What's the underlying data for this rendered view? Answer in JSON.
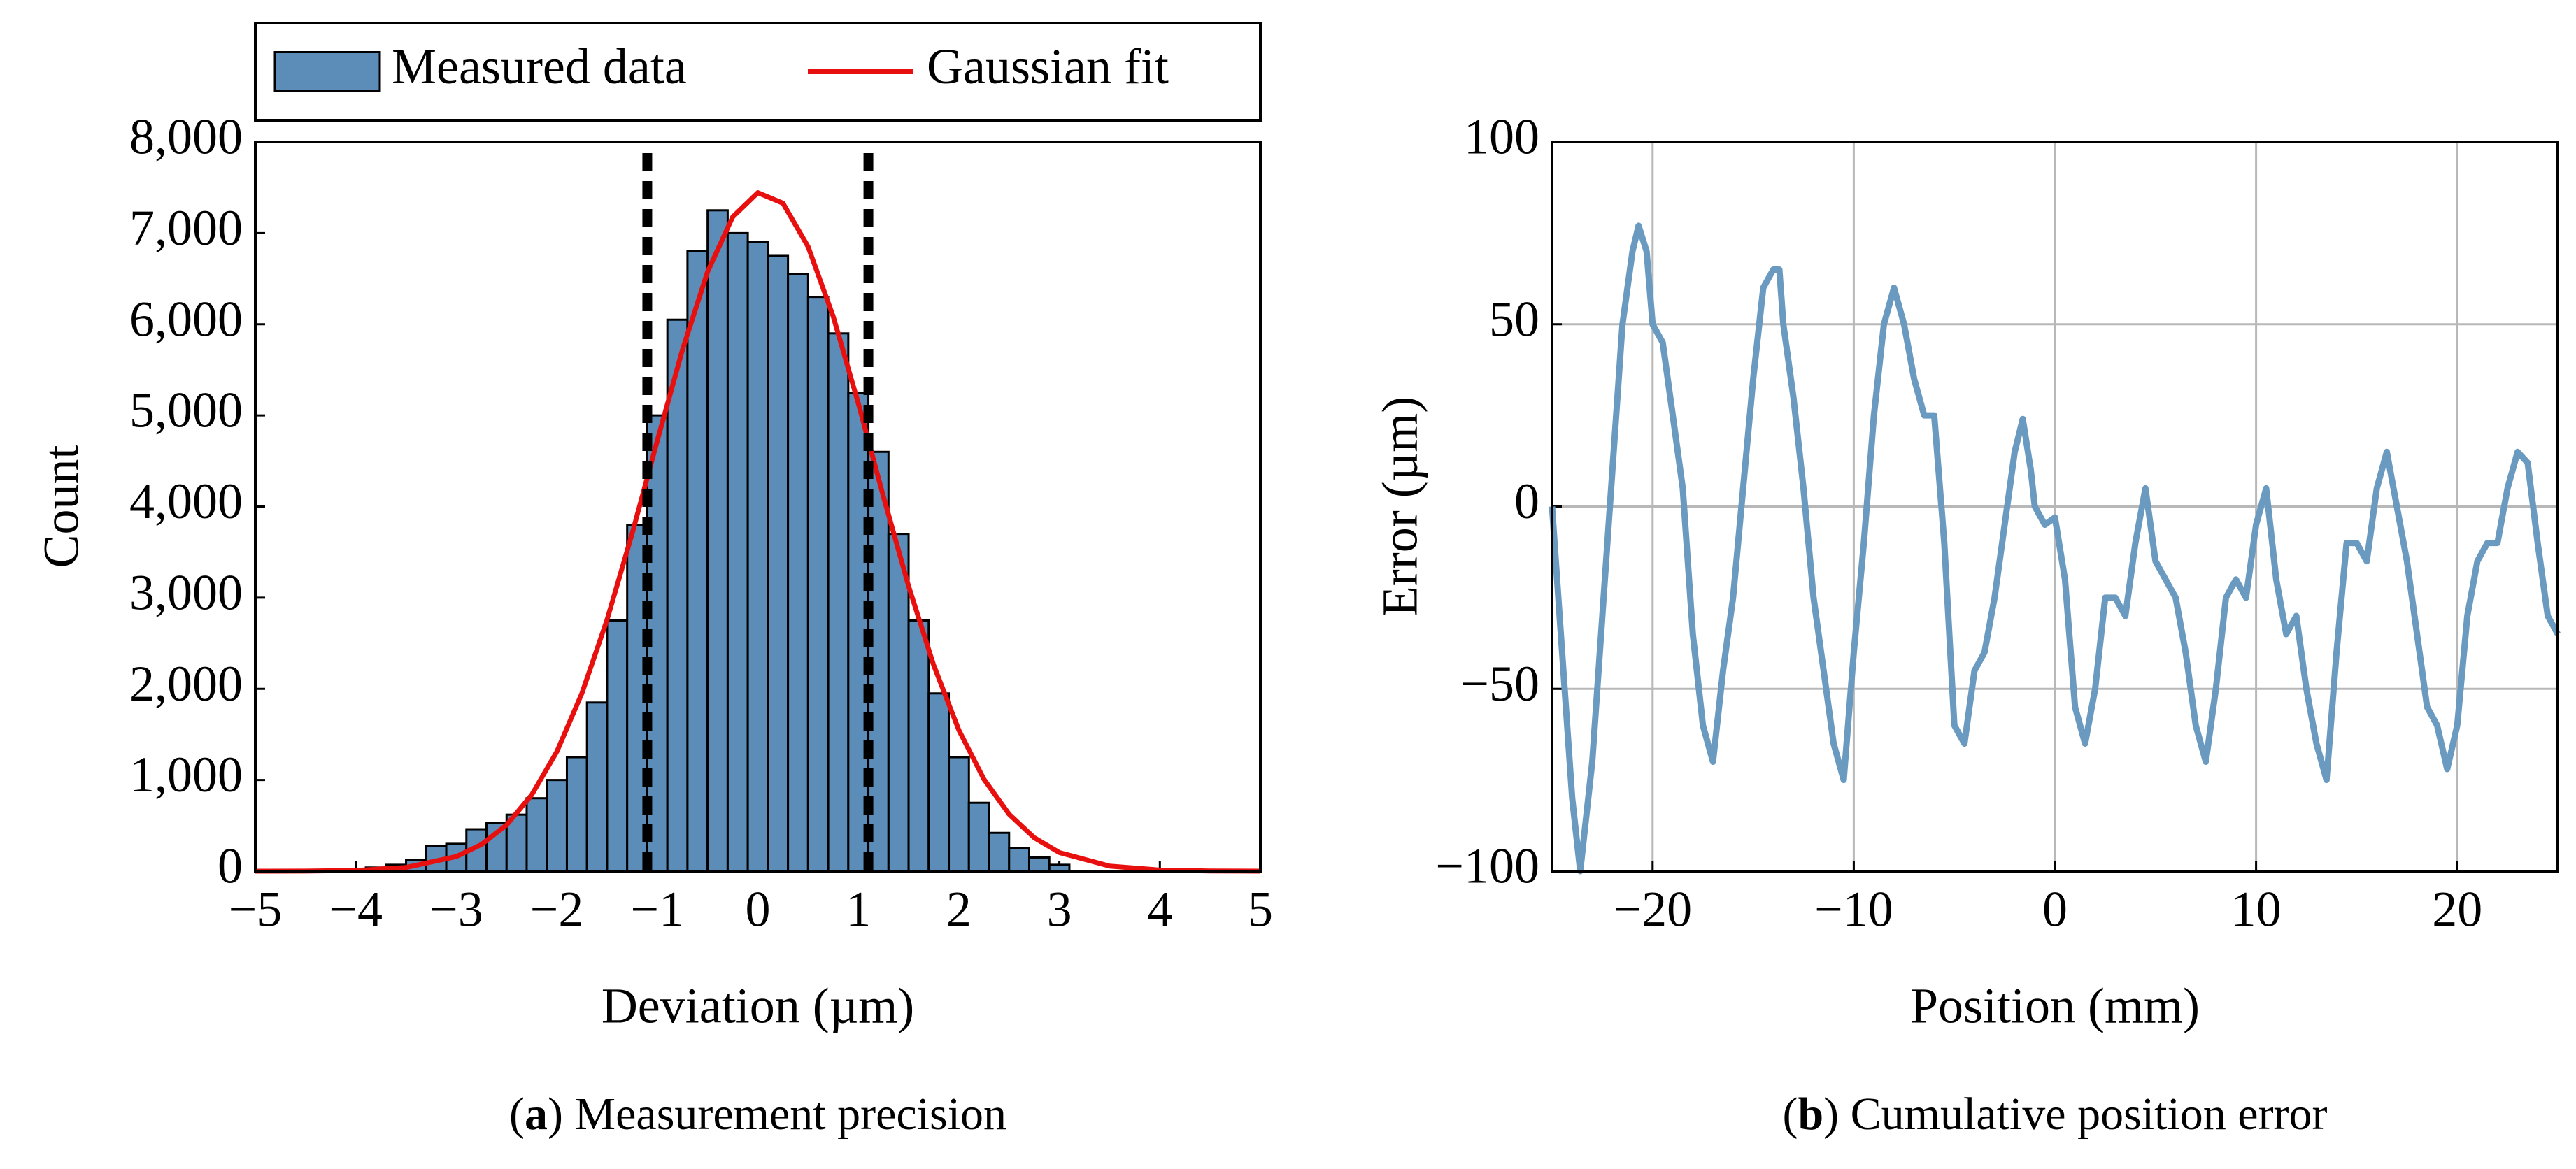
{
  "chart_data": [
    {
      "type": "histogram",
      "xlabel": "Deviation (µm)",
      "ylabel": "Count",
      "caption_open": "(",
      "caption_label": "a",
      "caption_text": ") Measurement precision",
      "bins": [
        -3.9,
        -3.7,
        -3.5,
        -3.3,
        -3.1,
        -2.9,
        -2.7,
        -2.5,
        -2.3,
        -2.1,
        -1.9,
        -1.7,
        -1.5,
        -1.3,
        -1.1,
        -0.9,
        -0.7,
        -0.5,
        -0.3,
        -0.1,
        0.1,
        0.3,
        0.5,
        0.7,
        0.9,
        1.1,
        1.3,
        1.5,
        1.7,
        1.9,
        2.1,
        2.3,
        2.5,
        2.7,
        2.9,
        3.1
      ],
      "counts": [
        40,
        70,
        120,
        280,
        300,
        460,
        530,
        620,
        800,
        1000,
        1250,
        1850,
        2750,
        3800,
        5000,
        6050,
        6800,
        7250,
        7000,
        6900,
        6750,
        6550,
        6300,
        5900,
        5250,
        4600,
        3700,
        2750,
        1950,
        1250,
        750,
        420,
        250,
        150,
        70
      ],
      "name": "Measured data",
      "color": "#5b8db8",
      "fit": {
        "name": "Gaussian fit",
        "color": "#e8100f",
        "x": [
          -5,
          -4.5,
          -4,
          -3.5,
          -3,
          -2.75,
          -2.5,
          -2.25,
          -2,
          -1.75,
          -1.5,
          -1.25,
          -1,
          -0.75,
          -0.5,
          -0.25,
          0,
          0.25,
          0.5,
          0.75,
          1,
          1.25,
          1.5,
          1.75,
          2,
          2.25,
          2.5,
          2.75,
          3,
          3.5,
          4,
          4.5,
          5
        ],
        "values": [
          0,
          1,
          8,
          41,
          160,
          292,
          507,
          837,
          1311,
          1952,
          2760,
          3706,
          4724,
          5719,
          6575,
          7178,
          7443,
          7328,
          6852,
          6085,
          5131,
          4109,
          3125,
          2257,
          1548,
          1008,
          624,
          367,
          204,
          55,
          12,
          2,
          0
        ]
      },
      "vlines": [
        -1.1,
        1.1
      ],
      "xlim": [
        -5,
        5
      ],
      "xticks": [
        {
          "value": -5,
          "label": "−5"
        },
        {
          "value": -4,
          "label": "−4"
        },
        {
          "value": -3,
          "label": "−3"
        },
        {
          "value": -2,
          "label": "−2"
        },
        {
          "value": -1,
          "label": "−1"
        },
        0,
        1,
        2,
        3,
        4,
        5
      ],
      "ylim": [
        0,
        8000
      ],
      "yticks": [
        0,
        {
          "value": 1000,
          "label": "1,000"
        },
        {
          "value": 2000,
          "label": "2,000"
        },
        {
          "value": 3000,
          "label": "3,000"
        },
        {
          "value": 4000,
          "label": "4,000"
        },
        {
          "value": 5000,
          "label": "5,000"
        },
        {
          "value": 6000,
          "label": "6,000"
        },
        {
          "value": 7000,
          "label": "7,000"
        },
        {
          "value": 8000,
          "label": "8,000"
        }
      ],
      "grid": false,
      "legend": "top"
    },
    {
      "type": "line",
      "xlabel": "Position (mm)",
      "ylabel": "Error (µm)",
      "caption_open": "(",
      "caption_label": "b",
      "caption_text": ") Cumulative position error",
      "x": [
        -25,
        -24.5,
        -24,
        -23.6,
        -23,
        -22.5,
        -22,
        -21.5,
        -21,
        -20.7,
        -20.3,
        -20,
        -19.5,
        -19,
        -18.5,
        -18,
        -17.5,
        -17,
        -16.5,
        -16,
        -15.5,
        -15,
        -14.5,
        -14,
        -13.7,
        -13.5,
        -13,
        -12.5,
        -12,
        -11.5,
        -11,
        -10.5,
        -10,
        -9.5,
        -9,
        -8.5,
        -8,
        -7.5,
        -7,
        -6.5,
        -6,
        -5.5,
        -5,
        -4.5,
        -4,
        -3.5,
        -3,
        -2.5,
        -2,
        -1.6,
        -1.2,
        -1,
        -0.5,
        0,
        0.5,
        1,
        1.5,
        2,
        2.5,
        3,
        3.5,
        4,
        4.5,
        5,
        5.5,
        6,
        6.5,
        7,
        7.5,
        8,
        8.5,
        9,
        9.5,
        10,
        10.5,
        11,
        11.5,
        12,
        12.5,
        13,
        13.5,
        14,
        14.5,
        15,
        15.5,
        16,
        16.5,
        17,
        17.5,
        18,
        18.5,
        19,
        19.5,
        20,
        20.5,
        21,
        21.5,
        22,
        22.5,
        23,
        23.5,
        24,
        24.5,
        25
      ],
      "series": [
        {
          "color": "#6a9ac0",
          "values": [
            0,
            -40,
            -80,
            -100,
            -70,
            -30,
            10,
            50,
            70,
            77,
            70,
            50,
            45,
            25,
            5,
            -35,
            -60,
            -70,
            -45,
            -25,
            5,
            35,
            60,
            65,
            65,
            50,
            30,
            5,
            -25,
            -45,
            -65,
            -75,
            -40,
            -10,
            25,
            50,
            60,
            50,
            35,
            25,
            25,
            -10,
            -60,
            -65,
            -45,
            -40,
            -25,
            -5,
            15,
            24,
            10,
            0,
            -5,
            -3,
            -20,
            -55,
            -65,
            -50,
            -25,
            -25,
            -30,
            -10,
            5,
            -15,
            -20,
            -25,
            -40,
            -60,
            -70,
            -50,
            -25,
            -20,
            -25,
            -5,
            5,
            -20,
            -35,
            -30,
            -50,
            -65,
            -75,
            -40,
            -10,
            -10,
            -15,
            5,
            15,
            0,
            -15,
            -35,
            -55,
            -60,
            -72,
            -60,
            -30,
            -15,
            -10,
            -10,
            5,
            15,
            12,
            -10,
            -30,
            -35
          ]
        }
      ],
      "xlim": [
        -25,
        25
      ],
      "xticks": [
        {
          "value": -20,
          "label": "−20"
        },
        {
          "value": -10,
          "label": "−10"
        },
        0,
        10,
        20
      ],
      "ylim": [
        -100,
        100
      ],
      "yticks": [
        {
          "value": -100,
          "label": "−100"
        },
        {
          "value": -50,
          "label": "−50"
        },
        0,
        50,
        100
      ],
      "grid": true
    }
  ]
}
